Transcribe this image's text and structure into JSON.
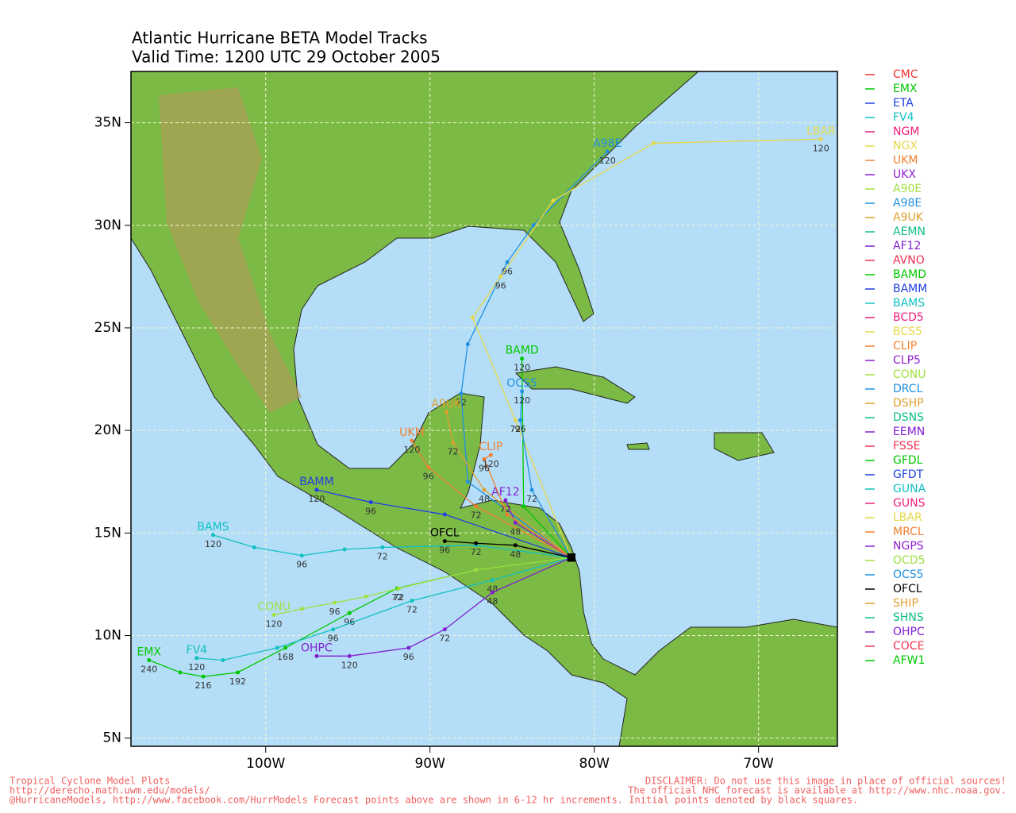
{
  "chart_data": {
    "type": "track-map",
    "title": "Atlantic Hurricane BETA Model Tracks",
    "subtitle": "Valid Time: 1200 UTC 29 October 2005",
    "xlim": [
      -108.2,
      -65.2
    ],
    "ylim": [
      4.6,
      37.5
    ],
    "xticks": [
      {
        "value": -100,
        "label": "100W"
      },
      {
        "value": -90,
        "label": "90W"
      },
      {
        "value": -80,
        "label": "80W"
      },
      {
        "value": -70,
        "label": "70W"
      }
    ],
    "yticks": [
      {
        "value": 5,
        "label": "5N"
      },
      {
        "value": 10,
        "label": "10N"
      },
      {
        "value": 15,
        "label": "15N"
      },
      {
        "value": 20,
        "label": "20N"
      },
      {
        "value": 25,
        "label": "25N"
      },
      {
        "value": 30,
        "label": "30N"
      },
      {
        "value": 35,
        "label": "35N"
      }
    ],
    "grid": true,
    "legend": "right",
    "series": [
      {
        "name": "CMC",
        "color": "#f03030"
      },
      {
        "name": "EMX",
        "color": "#00c800",
        "x": [
          -81.4,
          -87.2,
          -92.0,
          -94.9,
          -98.8,
          -101.7,
          -103.8,
          -105.2,
          -107.1
        ],
        "values": [
          13.8,
          13.2,
          12.3,
          11.1,
          9.4,
          8.2,
          8.0,
          8.2,
          8.8
        ],
        "hours": [
          null,
          null,
          72,
          96,
          168,
          192,
          216,
          null,
          240
        ]
      },
      {
        "name": "ETA",
        "color": "#2040e0"
      },
      {
        "name": "FV4",
        "color": "#10c0c0",
        "x": [
          -81.4,
          -86.2,
          -91.1,
          -95.9,
          -99.3,
          -102.6,
          -104.2
        ],
        "values": [
          13.8,
          12.7,
          11.7,
          10.3,
          9.4,
          8.8,
          8.9
        ],
        "hours": [
          null,
          48,
          72,
          96,
          null,
          null,
          120
        ]
      },
      {
        "name": "NGM",
        "color": "#f0207a"
      },
      {
        "name": "NGX",
        "color": "#e6d84a"
      },
      {
        "name": "UKM",
        "color": "#f08030",
        "x": [
          -81.4,
          -87.2,
          -90.1,
          -91.1
        ],
        "values": [
          13.8,
          16.3,
          18.2,
          19.5
        ],
        "hours": [
          null,
          72,
          96,
          120
        ]
      },
      {
        "name": "UKX",
        "color": "#9020d0"
      },
      {
        "name": "A90E",
        "color": "#a0e040"
      },
      {
        "name": "A98E",
        "color": "#2090e0",
        "x": [
          -81.4,
          -87.7,
          -88.1,
          -87.7,
          -85.3,
          -83.7,
          -79.2
        ],
        "values": [
          13.8,
          17.5,
          21.8,
          24.2,
          28.2,
          30.0,
          33.6
        ],
        "hours": [
          null,
          null,
          72,
          null,
          96,
          null,
          120
        ]
      },
      {
        "name": "A9UK",
        "color": "#e0a030",
        "x": [
          -81.4,
          -86.7,
          -88.6,
          -89.0
        ],
        "values": [
          13.8,
          17.1,
          19.4,
          20.9
        ],
        "hours": [
          null,
          48,
          72,
          null
        ]
      },
      {
        "name": "AEMN",
        "color": "#10c080"
      },
      {
        "name": "AF12",
        "color": "#8020d0",
        "x": [
          -81.4,
          -84.8,
          -85.4
        ],
        "values": [
          13.8,
          15.5,
          16.6
        ],
        "hours": [
          null,
          48,
          72
        ]
      },
      {
        "name": "AVNO",
        "color": "#f03050"
      },
      {
        "name": "BAMD",
        "color": "#00c800",
        "x": [
          -81.4,
          -84.3,
          -84.4
        ],
        "values": [
          13.8,
          16.3,
          23.5
        ],
        "hours": [
          null,
          null,
          120
        ]
      },
      {
        "name": "BAMM",
        "color": "#2040e0",
        "x": [
          -81.4,
          -89.1,
          -93.6,
          -96.9
        ],
        "values": [
          13.8,
          15.9,
          16.5,
          17.1
        ],
        "hours": [
          null,
          null,
          96,
          120
        ]
      },
      {
        "name": "BAMS",
        "color": "#10c0c0",
        "x": [
          -81.4,
          -87.2,
          -92.9,
          -95.2,
          -97.8,
          -100.7,
          -103.2
        ],
        "values": [
          13.8,
          14.4,
          14.3,
          14.2,
          13.9,
          14.3,
          14.9
        ],
        "hours": [
          null,
          null,
          72,
          null,
          96,
          null,
          120
        ]
      },
      {
        "name": "BCD5",
        "color": "#f0207a"
      },
      {
        "name": "BCS5",
        "color": "#e6d84a"
      },
      {
        "name": "CLIP",
        "color": "#f08030",
        "x": [
          -81.4,
          -85.3,
          -86.7,
          -86.3
        ],
        "values": [
          13.8,
          15.9,
          18.6,
          18.8
        ],
        "hours": [
          null,
          null,
          96,
          120
        ]
      },
      {
        "name": "CLP5",
        "color": "#9020d0"
      },
      {
        "name": "CONU",
        "color": "#a0e040",
        "x": [
          -81.4,
          -87.2,
          -91.9,
          -93.9,
          -95.8,
          -97.8,
          -99.5
        ],
        "values": [
          13.8,
          13.2,
          12.3,
          11.9,
          11.6,
          11.3,
          11.0
        ],
        "hours": [
          null,
          null,
          72,
          null,
          96,
          null,
          120
        ]
      },
      {
        "name": "DRCL",
        "color": "#2090e0"
      },
      {
        "name": "DSHP",
        "color": "#e0a030"
      },
      {
        "name": "DSNS",
        "color": "#10c080"
      },
      {
        "name": "EEMN",
        "color": "#8020d0"
      },
      {
        "name": "FSSE",
        "color": "#f03050"
      },
      {
        "name": "GFDL",
        "color": "#00c800"
      },
      {
        "name": "GFDT",
        "color": "#2040e0"
      },
      {
        "name": "GUNA",
        "color": "#10c0c0"
      },
      {
        "name": "GUNS",
        "color": "#f0207a"
      },
      {
        "name": "LBAR",
        "color": "#e6d84a",
        "x": [
          -81.4,
          -84.8,
          -87.4,
          -85.7,
          -82.5,
          -76.4,
          -66.2
        ],
        "values": [
          13.8,
          20.5,
          25.5,
          27.5,
          31.2,
          34.0,
          34.2
        ],
        "hours": [
          null,
          72,
          null,
          96,
          null,
          null,
          120
        ]
      },
      {
        "name": "MRCL",
        "color": "#f08030"
      },
      {
        "name": "NGPS",
        "color": "#9020d0"
      },
      {
        "name": "OCD5",
        "color": "#a0e040"
      },
      {
        "name": "OCS5",
        "color": "#2090e0",
        "x": [
          -81.4,
          -83.8,
          -84.5,
          -84.4
        ],
        "values": [
          13.8,
          17.1,
          20.5,
          21.9
        ],
        "hours": [
          null,
          72,
          96,
          120
        ]
      },
      {
        "name": "OFCL",
        "color": "#000000",
        "x": [
          -81.4,
          -84.8,
          -87.2,
          -89.1
        ],
        "values": [
          13.8,
          14.4,
          14.5,
          14.6
        ],
        "hours": [
          null,
          48,
          72,
          96
        ]
      },
      {
        "name": "SHIP",
        "color": "#e0a030"
      },
      {
        "name": "SHNS",
        "color": "#10c080"
      },
      {
        "name": "OHPC",
        "color": "#8020d0",
        "x": [
          -81.4,
          -86.2,
          -89.1,
          -91.3,
          -94.9,
          -96.9
        ],
        "values": [
          13.8,
          12.1,
          10.3,
          9.4,
          9.0,
          9.0
        ],
        "hours": [
          null,
          48,
          72,
          96,
          120,
          null
        ]
      },
      {
        "name": "COCE",
        "color": "#f03050"
      },
      {
        "name": "AFW1",
        "color": "#00c800"
      }
    ],
    "footer_left": [
      "Tropical Cyclone Model Plots",
      "http://derecho.math.uwm.edu/models/",
      "@HurricaneModels, http://www.facebook.com/HurrModels  Forecast points above are shown in 6-12 hr increments. Initial points denoted by black squares."
    ],
    "footer_right": [
      "DISCLAIMER: Do not use this image in place of official sources!",
      "The official NHC forecast is available at http://www.nhc.noaa.gov."
    ]
  }
}
